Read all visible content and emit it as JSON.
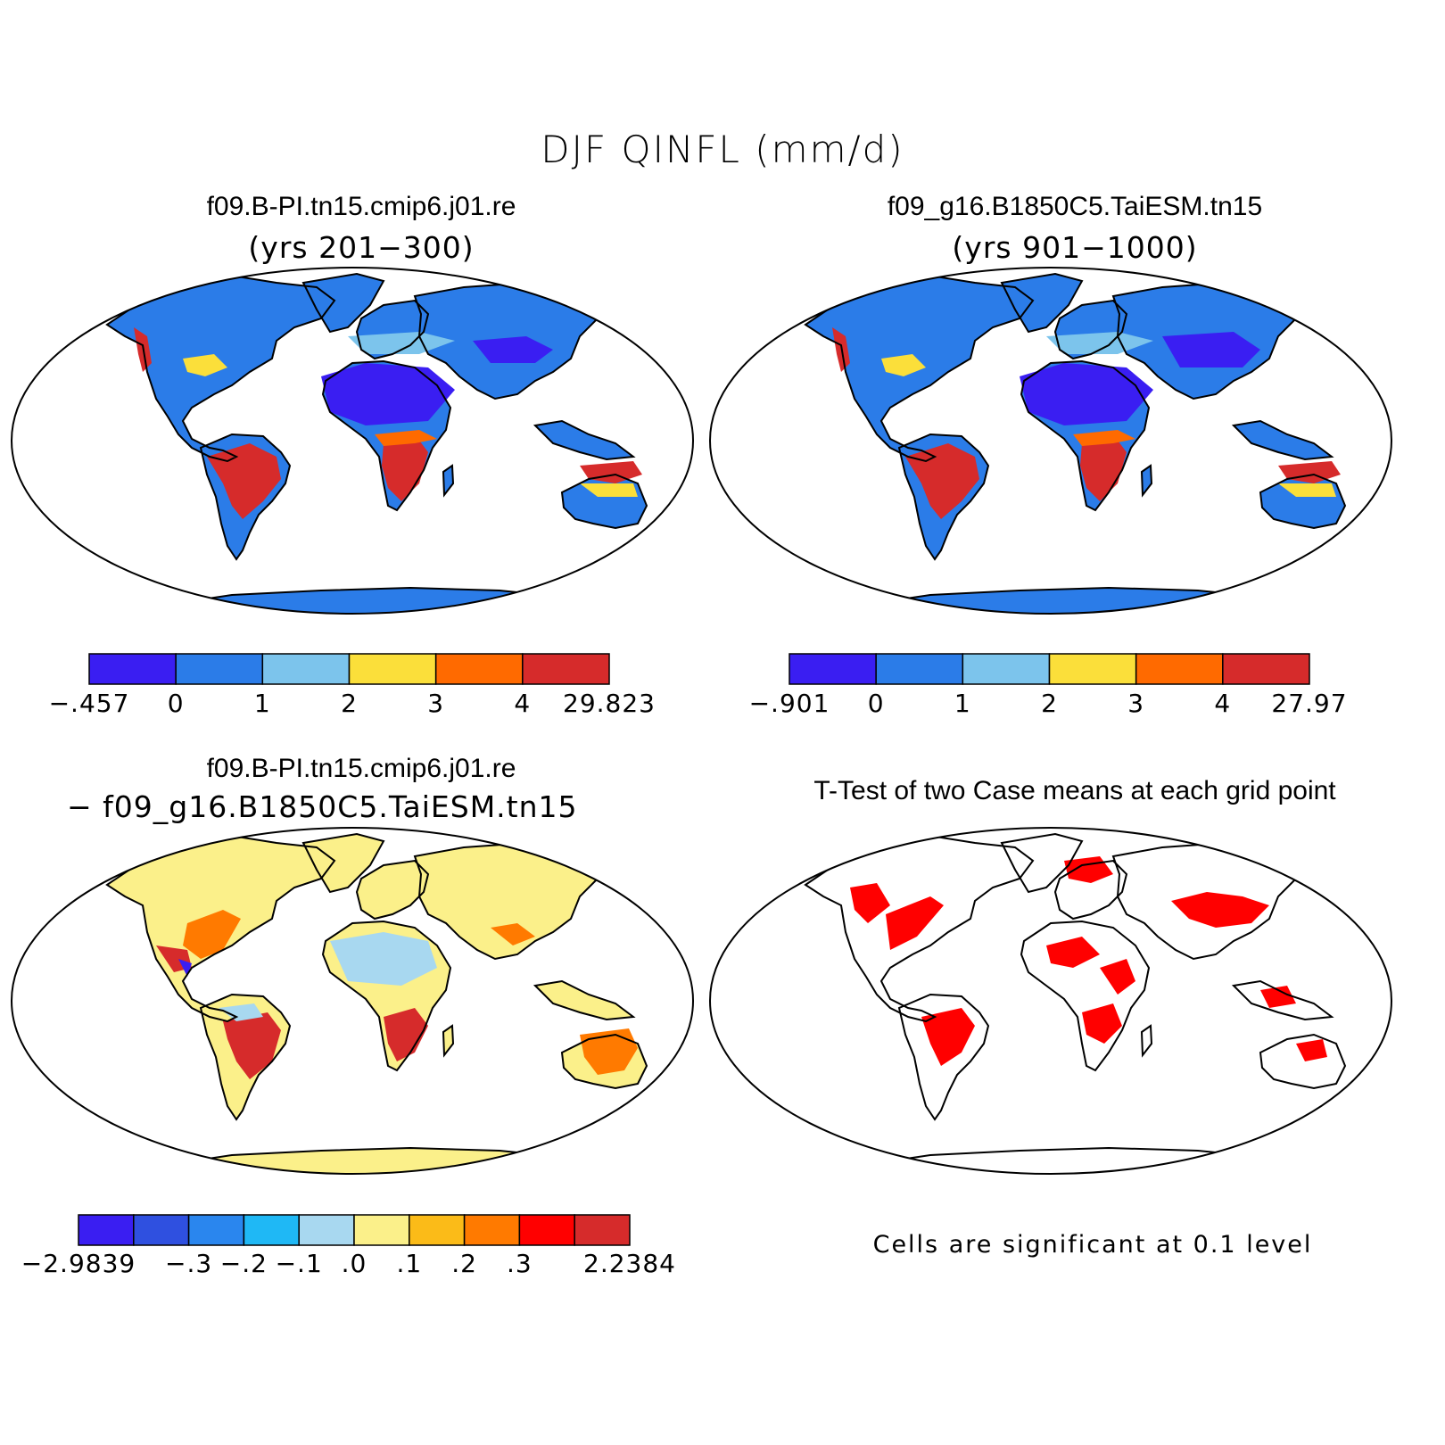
{
  "title": "DJF QINFL (mm/d)",
  "colors": {
    "land_fill": "#2b7ce8",
    "outline": "#000000",
    "significance": "#ff0000",
    "diff_base": "#fbf08a"
  },
  "panels": [
    {
      "title": "f09.B-PI.tn15.cmip6.j01.re",
      "subtitle": "(yrs 201−300)",
      "colorbar": {
        "colors": [
          "#3a1ef2",
          "#2b7ce8",
          "#7cc4ec",
          "#fbdf3a",
          "#ff6a00",
          "#d62b2b"
        ],
        "labels": [
          "−.457",
          "0",
          "1",
          "2",
          "3",
          "4",
          "29.823"
        ]
      }
    },
    {
      "title": "f09_g16.B1850C5.TaiESM.tn15",
      "subtitle": "(yrs 901−1000)",
      "colorbar": {
        "colors": [
          "#3a1ef2",
          "#2b7ce8",
          "#7cc4ec",
          "#fbdf3a",
          "#ff6a00",
          "#d62b2b"
        ],
        "labels": [
          "−.901",
          "0",
          "1",
          "2",
          "3",
          "4",
          "27.97"
        ]
      }
    },
    {
      "title": "f09.B-PI.tn15.cmip6.j01.re",
      "subtitle": "−  f09_g16.B1850C5.TaiESM.tn15",
      "colorbar": {
        "colors": [
          "#3a1ef2",
          "#2f50e0",
          "#2a86ee",
          "#1fb8f5",
          "#a8d8f0",
          "#fbf08a",
          "#fbbb18",
          "#ff7a00",
          "#ff0000",
          "#d62b2b"
        ],
        "labels": [
          "−2.9839",
          "−.3",
          "−.2",
          "−.1",
          ".0",
          ".1",
          ".2",
          ".3",
          "2.2384"
        ]
      }
    },
    {
      "title": "T-Test of two Case means at each grid point",
      "note": "Cells are significant at 0.1 level"
    }
  ]
}
